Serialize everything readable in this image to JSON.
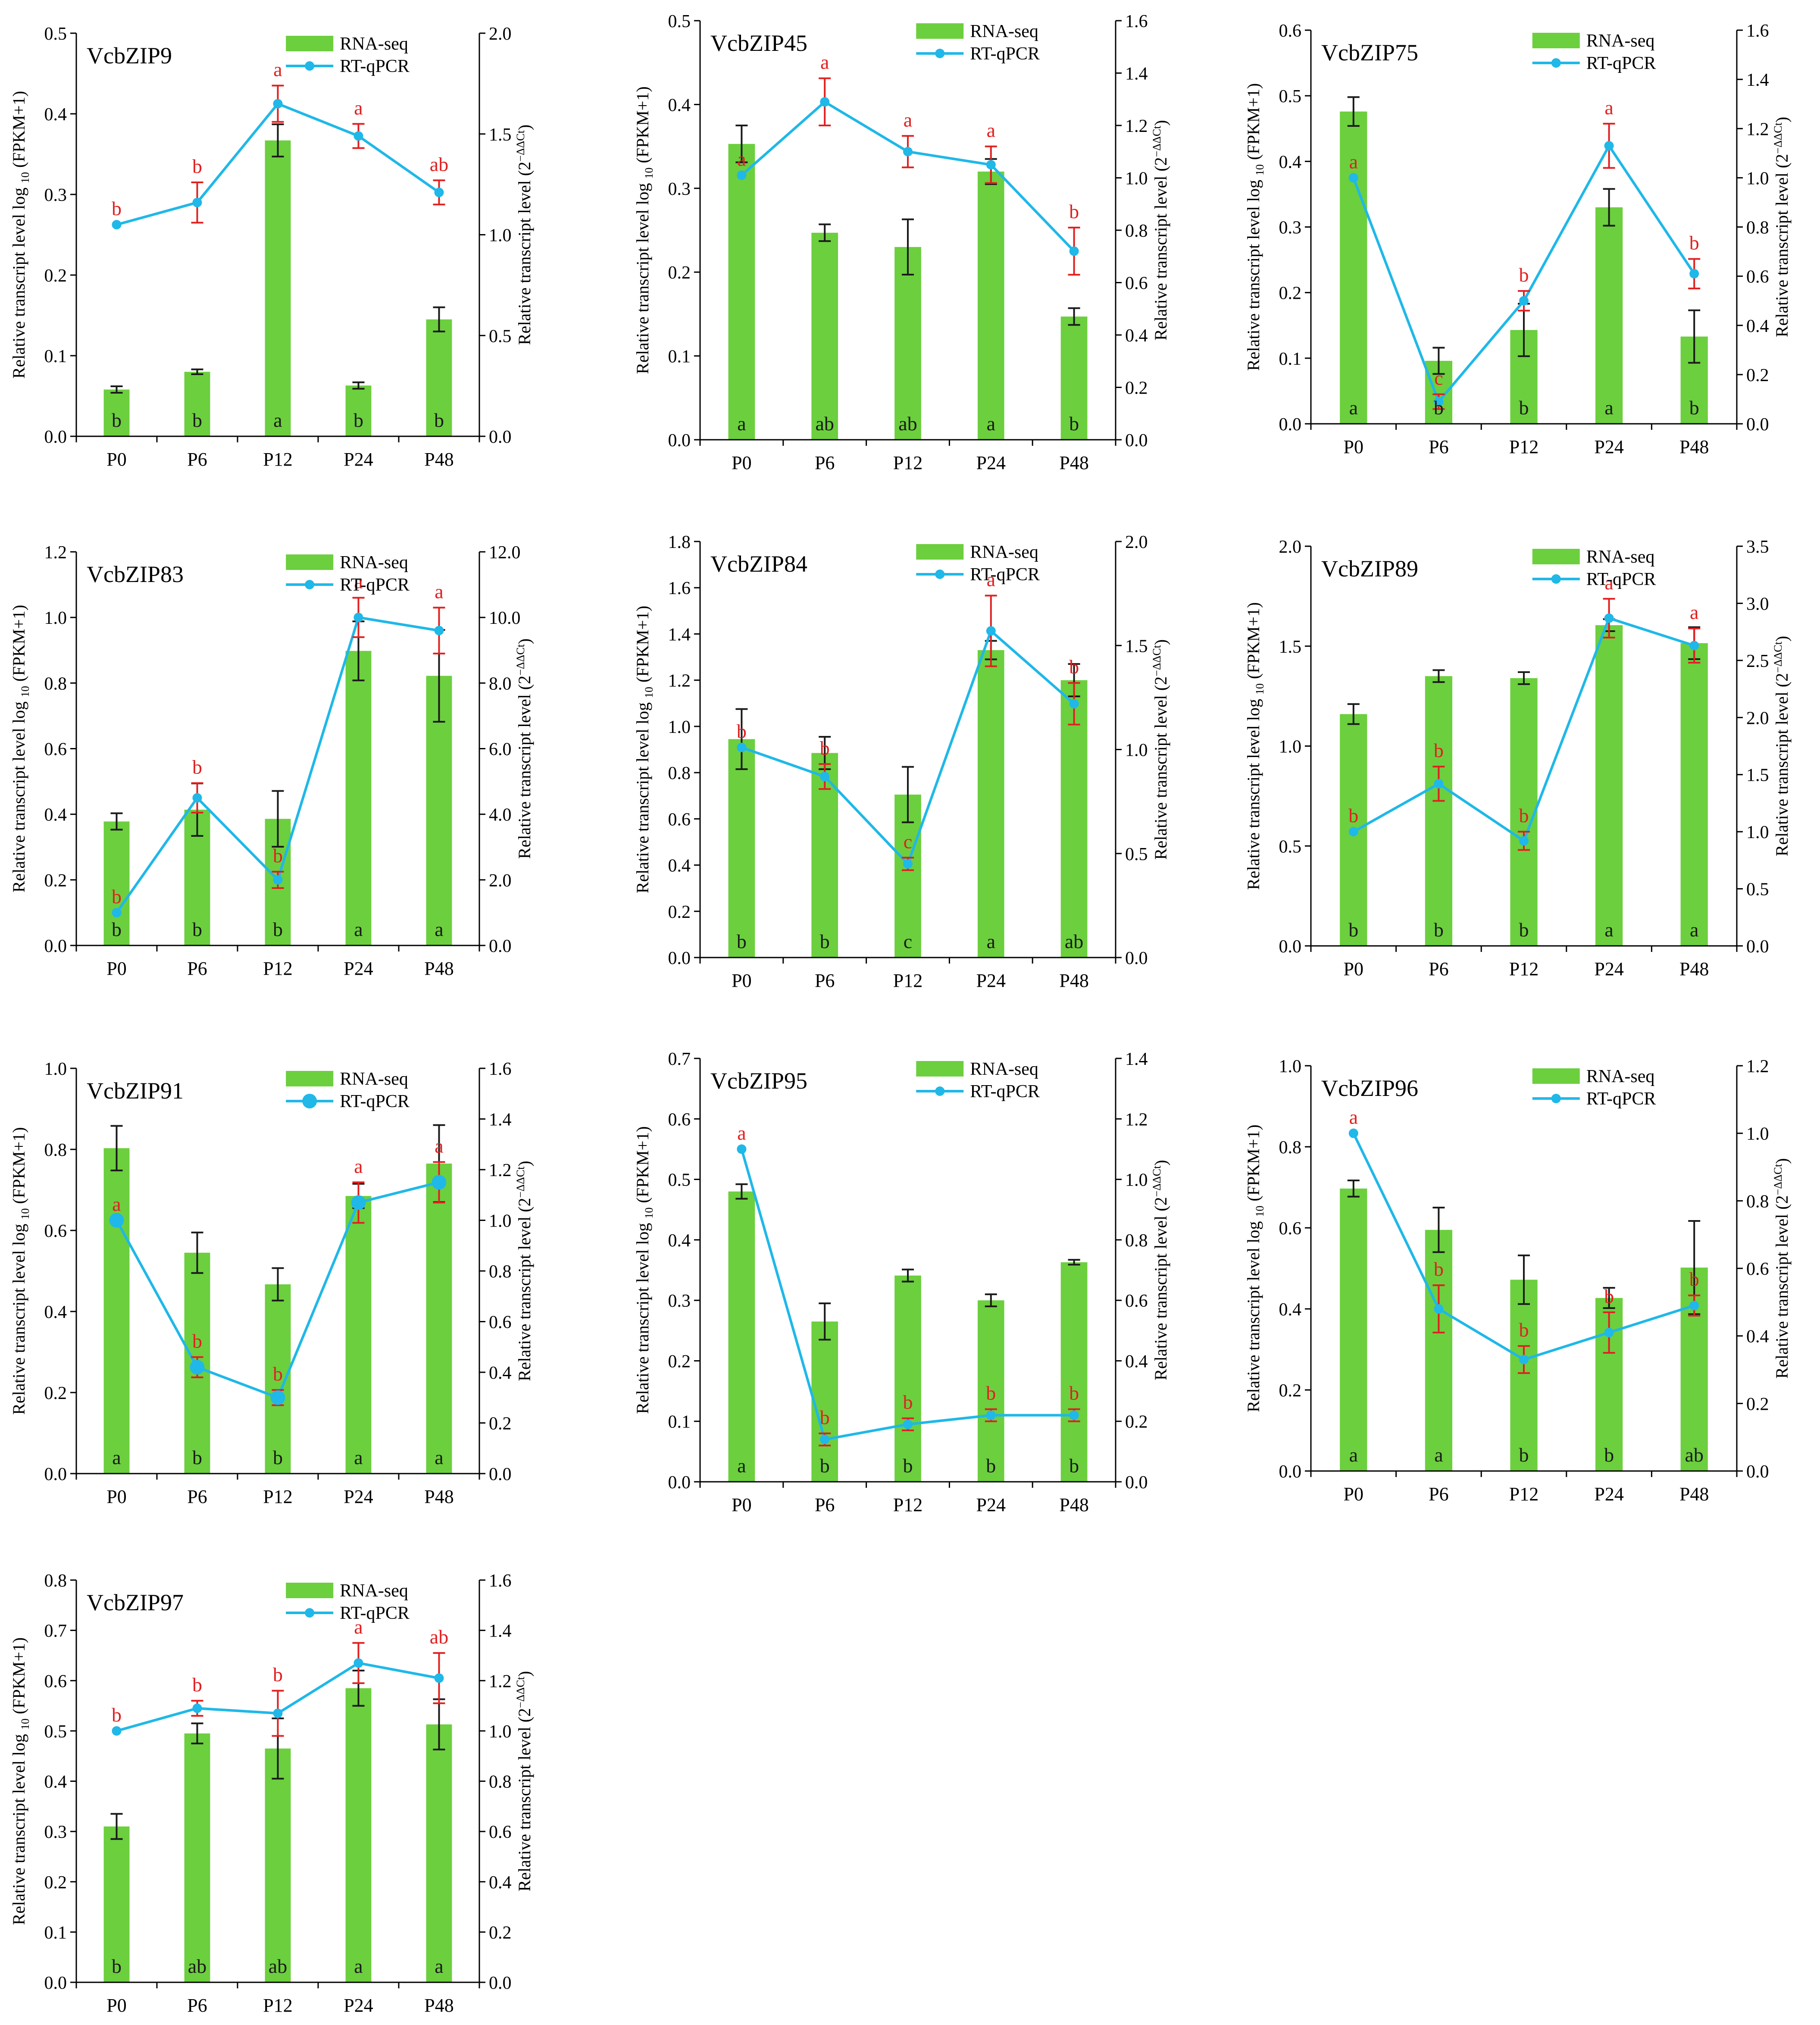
{
  "figure": {
    "bar_color": "#6ccf3e",
    "line_color": "#1fb8e8",
    "error_bar_color_bar": "#1a1a1a",
    "error_bar_color_line": "#e02020",
    "letter_color_rna": "#1a1a1a",
    "letter_color_qpcr": "#e02020"
  },
  "legend": {
    "rna": "RNA-seq",
    "qpcr": "RT-qPCR"
  },
  "axis_text": {
    "left_prefix": "Relative transcript level log",
    "left_sub": "10",
    "left_suffix": "(FPKM+1)",
    "right_prefix": "Relative transcript  level (2",
    "right_sup": "−ΔΔCt",
    "right_suffix": ")"
  },
  "chart_data": [
    {
      "type": "bar+line",
      "title": "VcbZIP9",
      "categories": [
        "P0",
        "P6",
        "P12",
        "P24",
        "P48"
      ],
      "left": {
        "ylim": [
          0,
          0.5
        ],
        "ticks": [
          "0.0",
          "0.1",
          "0.2",
          "0.3",
          "0.4",
          "0.5"
        ]
      },
      "right": {
        "ylim": [
          0,
          2.0
        ],
        "ticks": [
          "0.0",
          "0.5",
          "1.0",
          "1.5",
          "2.0"
        ]
      },
      "rna": {
        "values": [
          0.058,
          0.08,
          0.367,
          0.063,
          0.145
        ],
        "err": [
          0.004,
          0.003,
          0.02,
          0.004,
          0.015
        ],
        "letters": [
          "b",
          "b",
          "a",
          "b",
          "b"
        ]
      },
      "qpcr": {
        "values": [
          1.05,
          1.16,
          1.65,
          1.49,
          1.21
        ],
        "err": [
          0,
          0.1,
          0.09,
          0.06,
          0.06
        ],
        "letters": [
          "b",
          "b",
          "a",
          "a",
          "ab"
        ]
      }
    },
    {
      "type": "bar+line",
      "title": "VcbZIP45",
      "categories": [
        "P0",
        "P6",
        "P12",
        "P24",
        "P48"
      ],
      "left": {
        "ylim": [
          0,
          0.5
        ],
        "ticks": [
          "0.0",
          "0.1",
          "0.2",
          "0.3",
          "0.4",
          "0.5"
        ]
      },
      "right": {
        "ylim": [
          0,
          1.6
        ],
        "ticks": [
          "0.0",
          "0.2",
          "0.4",
          "0.6",
          "0.8",
          "1.0",
          "1.2",
          "1.4",
          "1.6"
        ]
      },
      "rna": {
        "values": [
          0.353,
          0.247,
          0.23,
          0.32,
          0.147
        ],
        "err": [
          0.022,
          0.01,
          0.033,
          0.015,
          0.01
        ],
        "letters": [
          "a",
          "ab",
          "ab",
          "a",
          "b"
        ]
      },
      "qpcr": {
        "values": [
          1.01,
          1.29,
          1.1,
          1.05,
          0.72
        ],
        "err": [
          0,
          0.09,
          0.06,
          0.07,
          0.09
        ],
        "letters": [
          "a",
          "a",
          "a",
          "a",
          "b"
        ]
      }
    },
    {
      "type": "bar+line",
      "title": "VcbZIP75",
      "categories": [
        "P0",
        "P6",
        "P12",
        "P24",
        "P48"
      ],
      "left": {
        "ylim": [
          0,
          0.6
        ],
        "ticks": [
          "0.0",
          "0.1",
          "0.2",
          "0.3",
          "0.4",
          "0.5",
          "0.6"
        ]
      },
      "right": {
        "ylim": [
          0,
          1.6
        ],
        "ticks": [
          "0.0",
          "0.2",
          "0.4",
          "0.6",
          "0.8",
          "1.0",
          "1.2",
          "1.4",
          "1.6"
        ]
      },
      "rna": {
        "values": [
          0.476,
          0.096,
          0.143,
          0.33,
          0.133
        ],
        "err": [
          0.022,
          0.02,
          0.04,
          0.028,
          0.04
        ],
        "letters": [
          "a",
          "b",
          "b",
          "a",
          "b"
        ]
      },
      "qpcr": {
        "values": [
          1.0,
          0.09,
          0.5,
          1.13,
          0.61
        ],
        "err": [
          0,
          0.03,
          0.04,
          0.09,
          0.06
        ],
        "letters": [
          "a",
          "c",
          "b",
          "a",
          "b"
        ]
      }
    },
    {
      "type": "bar+line",
      "title": "VcbZIP83",
      "categories": [
        "P0",
        "P6",
        "P12",
        "P24",
        "P48"
      ],
      "left": {
        "ylim": [
          0,
          1.2
        ],
        "ticks": [
          "0.0",
          "0.2",
          "0.4",
          "0.6",
          "0.8",
          "1.0",
          "1.2"
        ]
      },
      "right": {
        "ylim": [
          0,
          12.0
        ],
        "ticks": [
          "0.0",
          "2.0",
          "4.0",
          "6.0",
          "8.0",
          "10.0",
          "12.0"
        ]
      },
      "rna": {
        "values": [
          0.378,
          0.414,
          0.386,
          0.898,
          0.822
        ],
        "err": [
          0.025,
          0.08,
          0.085,
          0.09,
          0.14
        ],
        "letters": [
          "b",
          "b",
          "b",
          "a",
          "a"
        ]
      },
      "qpcr": {
        "values": [
          1.0,
          4.5,
          2.0,
          10.0,
          9.6
        ],
        "err": [
          0,
          0.45,
          0.25,
          0.6,
          0.7
        ],
        "letters": [
          "b",
          "b",
          "b",
          "a",
          "a"
        ]
      }
    },
    {
      "type": "bar+line",
      "title": "VcbZIP84",
      "categories": [
        "P0",
        "P6",
        "P12",
        "P24",
        "P48"
      ],
      "left": {
        "ylim": [
          0,
          1.8
        ],
        "ticks": [
          "0.0",
          "0.2",
          "0.4",
          "0.6",
          "0.8",
          "1.0",
          "1.2",
          "1.4",
          "1.6",
          "1.8"
        ]
      },
      "right": {
        "ylim": [
          0,
          2.0
        ],
        "ticks": [
          "0.0",
          "0.5",
          "1.0",
          "1.5",
          "2.0"
        ]
      },
      "rna": {
        "values": [
          0.945,
          0.885,
          0.705,
          1.33,
          1.2
        ],
        "err": [
          0.13,
          0.07,
          0.12,
          0.04,
          0.07
        ],
        "letters": [
          "b",
          "b",
          "c",
          "a",
          "ab"
        ]
      },
      "qpcr": {
        "values": [
          1.01,
          0.87,
          0.45,
          1.57,
          1.22
        ],
        "err": [
          0,
          0.06,
          0.03,
          0.17,
          0.1
        ],
        "letters": [
          "b",
          "b",
          "c",
          "a",
          "b"
        ]
      }
    },
    {
      "type": "bar+line",
      "title": "VcbZIP89",
      "categories": [
        "P0",
        "P6",
        "P12",
        "P24",
        "P48"
      ],
      "left": {
        "ylim": [
          0,
          2.0
        ],
        "ticks": [
          "0.0",
          "0.5",
          "1.0",
          "1.5",
          "2.0"
        ]
      },
      "right": {
        "ylim": [
          0,
          3.5
        ],
        "ticks": [
          "0.0",
          "0.5",
          "1.0",
          "1.5",
          "2.0",
          "2.5",
          "3.0",
          "3.5"
        ]
      },
      "rna": {
        "values": [
          1.16,
          1.35,
          1.34,
          1.605,
          1.515
        ],
        "err": [
          0.05,
          0.03,
          0.03,
          0.03,
          0.08
        ],
        "letters": [
          "b",
          "b",
          "b",
          "a",
          "a"
        ]
      },
      "qpcr": {
        "values": [
          1.0,
          1.42,
          0.92,
          2.87,
          2.63
        ],
        "err": [
          0,
          0.15,
          0.08,
          0.17,
          0.15
        ],
        "letters": [
          "b",
          "b",
          "b",
          "a",
          "a"
        ]
      }
    },
    {
      "type": "bar+line",
      "title": "VcbZIP91",
      "categories": [
        "P0",
        "P6",
        "P12",
        "P24",
        "P48"
      ],
      "left": {
        "ylim": [
          0,
          1.0
        ],
        "ticks": [
          "0.0",
          "0.2",
          "0.4",
          "0.6",
          "0.8",
          "1.0"
        ]
      },
      "right": {
        "ylim": [
          0,
          1.6
        ],
        "ticks": [
          "0.0",
          "0.2",
          "0.4",
          "0.6",
          "0.8",
          "1.0",
          "1.2",
          "1.4",
          "1.6"
        ]
      },
      "rna": {
        "values": [
          0.803,
          0.545,
          0.467,
          0.685,
          0.765
        ],
        "err": [
          0.055,
          0.05,
          0.04,
          0.03,
          0.095
        ],
        "letters": [
          "a",
          "b",
          "b",
          "a",
          "a"
        ]
      },
      "qpcr": {
        "values": [
          1.0,
          0.42,
          0.3,
          1.07,
          1.15
        ],
        "err": [
          0,
          0.04,
          0.03,
          0.08,
          0.08
        ],
        "letters": [
          "a",
          "b",
          "b",
          "a",
          "a"
        ]
      }
    },
    {
      "type": "bar+line",
      "title": "VcbZIP95",
      "categories": [
        "P0",
        "P6",
        "P12",
        "P24",
        "P48"
      ],
      "left": {
        "ylim": [
          0,
          0.7
        ],
        "ticks": [
          "0.0",
          "0.1",
          "0.2",
          "0.3",
          "0.4",
          "0.5",
          "0.6",
          "0.7"
        ]
      },
      "right": {
        "ylim": [
          0,
          1.4
        ],
        "ticks": [
          "0.0",
          "0.2",
          "0.4",
          "0.6",
          "0.8",
          "1.0",
          "1.2",
          "1.4"
        ]
      },
      "rna": {
        "values": [
          0.48,
          0.265,
          0.341,
          0.3,
          0.363
        ],
        "err": [
          0.012,
          0.03,
          0.01,
          0.01,
          0.004
        ],
        "letters": [
          "a",
          "b",
          "b",
          "b",
          "b"
        ]
      },
      "qpcr": {
        "values": [
          1.1,
          0.14,
          0.19,
          0.22,
          0.22
        ],
        "err": [
          0,
          0.02,
          0.02,
          0.02,
          0.02
        ],
        "letters": [
          "a",
          "b",
          "b",
          "b",
          "b"
        ]
      }
    },
    {
      "type": "bar+line",
      "title": "VcbZIP96",
      "categories": [
        "P0",
        "P6",
        "P12",
        "P24",
        "P48"
      ],
      "left": {
        "ylim": [
          0,
          1.0
        ],
        "ticks": [
          "0.0",
          "0.2",
          "0.4",
          "0.6",
          "0.8",
          "1.0"
        ]
      },
      "right": {
        "ylim": [
          0,
          1.2
        ],
        "ticks": [
          "0.0",
          "0.2",
          "0.4",
          "0.6",
          "0.8",
          "1.0",
          "1.2"
        ]
      },
      "rna": {
        "values": [
          0.697,
          0.595,
          0.472,
          0.427,
          0.502
        ],
        "err": [
          0.02,
          0.055,
          0.06,
          0.025,
          0.115
        ],
        "letters": [
          "a",
          "a",
          "b",
          "b",
          "ab"
        ]
      },
      "qpcr": {
        "values": [
          1.0,
          0.48,
          0.33,
          0.41,
          0.49
        ],
        "err": [
          0,
          0.07,
          0.04,
          0.06,
          0.03
        ],
        "letters": [
          "a",
          "b",
          "b",
          "b",
          "b"
        ]
      }
    },
    {
      "type": "bar+line",
      "title": "VcbZIP97",
      "categories": [
        "P0",
        "P6",
        "P12",
        "P24",
        "P48"
      ],
      "left": {
        "ylim": [
          0,
          0.8
        ],
        "ticks": [
          "0.0",
          "0.1",
          "0.2",
          "0.3",
          "0.4",
          "0.5",
          "0.6",
          "0.7",
          "0.8"
        ]
      },
      "right": {
        "ylim": [
          0,
          1.6
        ],
        "ticks": [
          "0.0",
          "0.2",
          "0.4",
          "0.6",
          "0.8",
          "1.0",
          "1.2",
          "1.4",
          "1.6"
        ]
      },
      "rna": {
        "values": [
          0.31,
          0.495,
          0.465,
          0.585,
          0.513
        ],
        "err": [
          0.025,
          0.02,
          0.06,
          0.035,
          0.05
        ],
        "letters": [
          "b",
          "ab",
          "ab",
          "a",
          "a"
        ]
      },
      "qpcr": {
        "values": [
          1.0,
          1.09,
          1.07,
          1.27,
          1.21
        ],
        "err": [
          0,
          0.03,
          0.09,
          0.08,
          0.1
        ],
        "letters": [
          "b",
          "b",
          "b",
          "a",
          "ab"
        ]
      }
    }
  ]
}
